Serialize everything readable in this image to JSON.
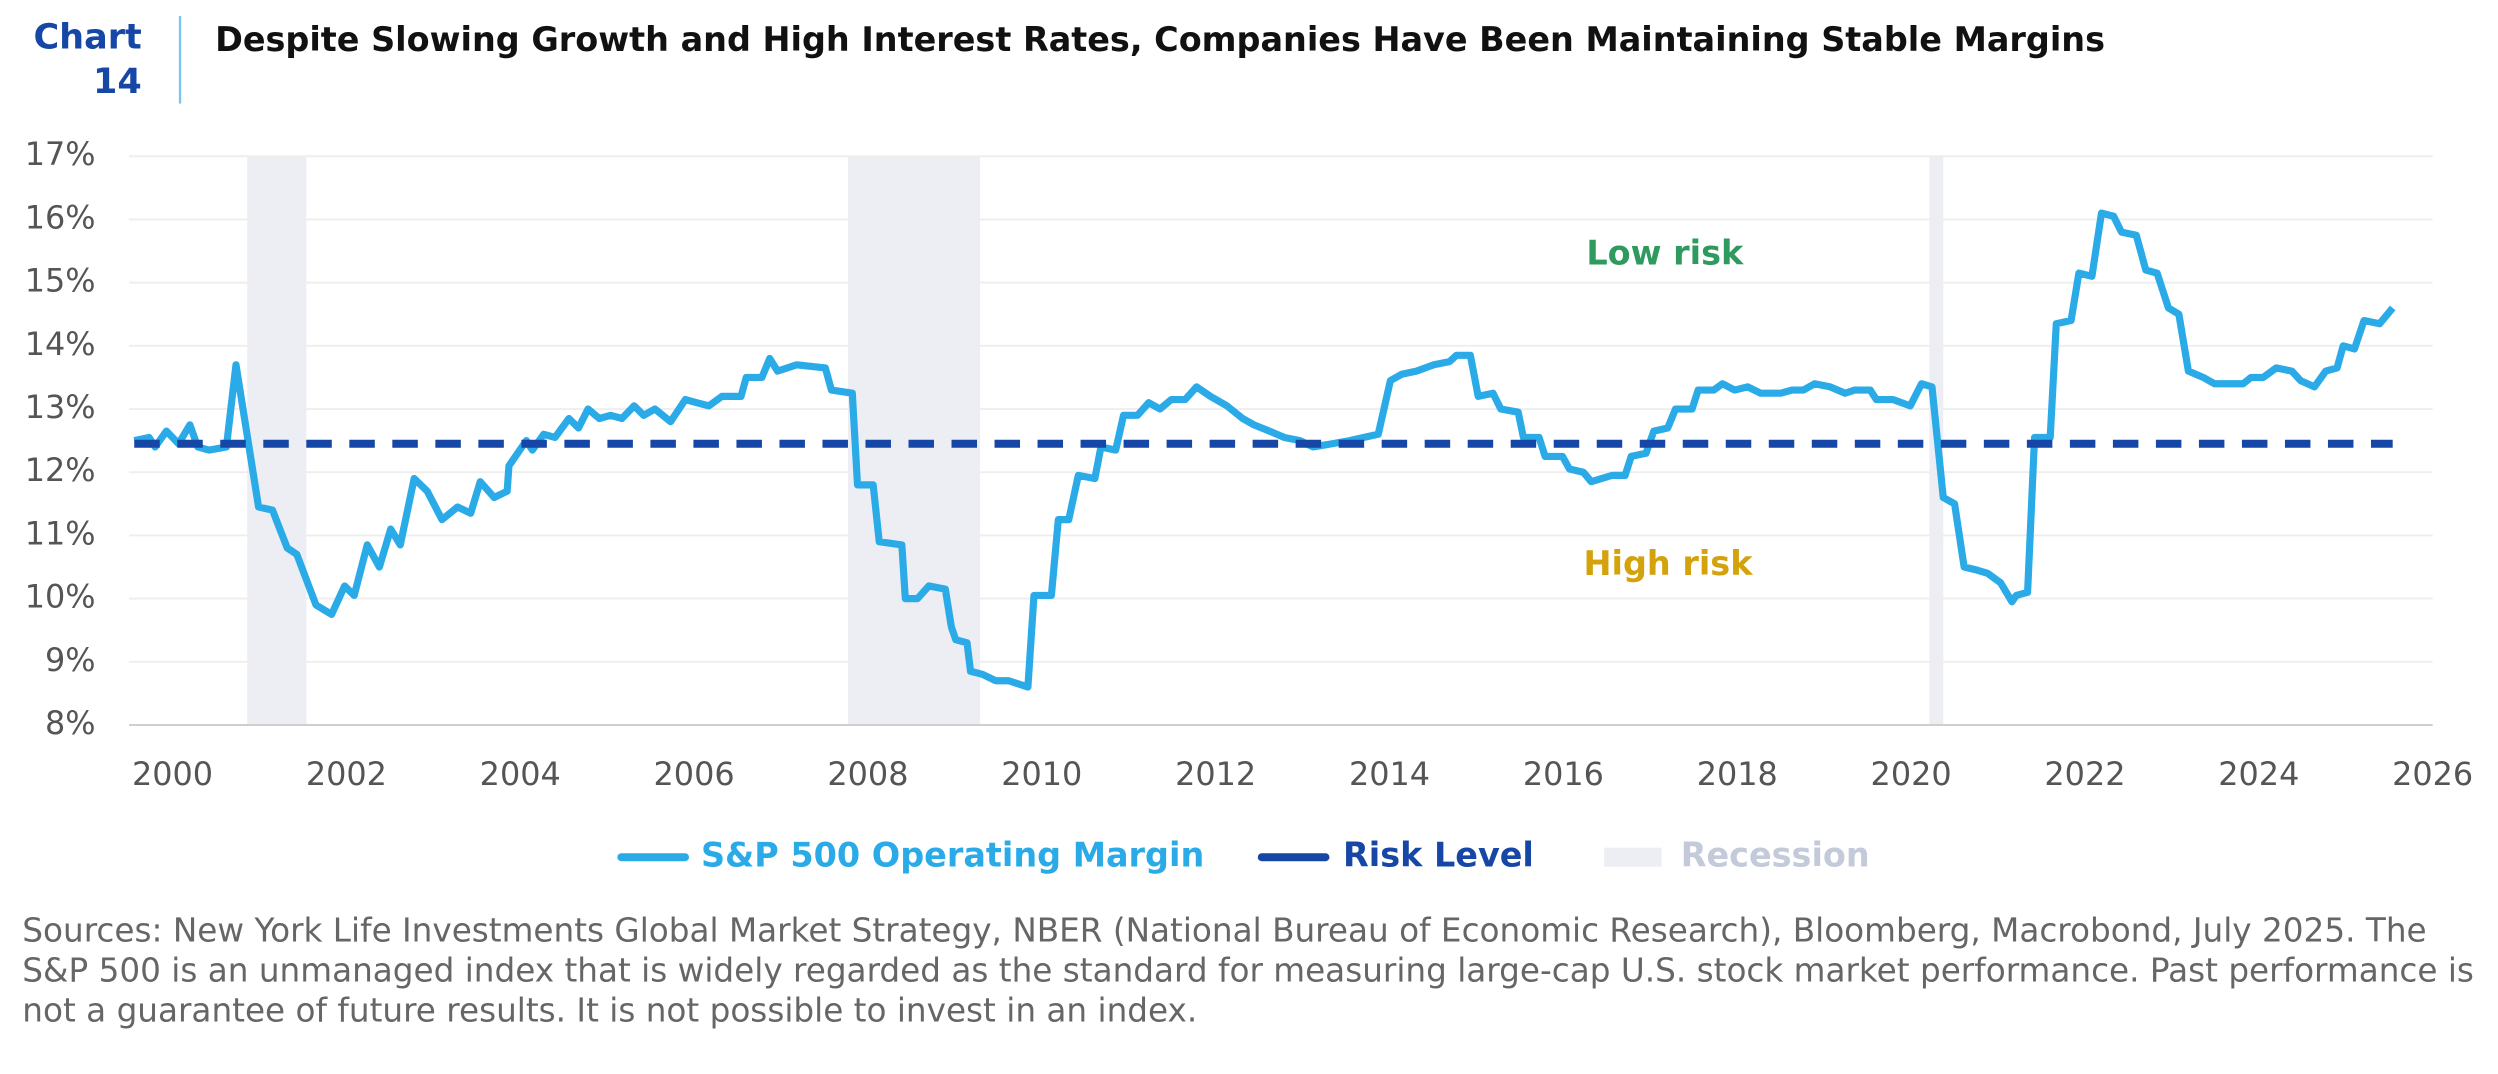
{
  "chart_data": {
    "type": "line",
    "chart_label": "Chart",
    "chart_number": "14",
    "title": "Despite Slowing Growth and High Interest Rates, Companies Have Been Maintaining Stable Margins",
    "annotations": [
      {
        "text": "Low risk",
        "color": "#2e9a5e"
      },
      {
        "text": "High risk",
        "color": "#d4a20a"
      }
    ],
    "xlim": [
      1999.5,
      2026
    ],
    "xticks": [
      2000,
      2002,
      2004,
      2006,
      2008,
      2010,
      2012,
      2014,
      2016,
      2018,
      2020,
      2022,
      2024,
      2026
    ],
    "ylim": [
      8,
      17
    ],
    "yticks": [
      {
        "value": 8,
        "label": "8%"
      },
      {
        "value": 9,
        "label": "9%"
      },
      {
        "value": 10,
        "label": "10%"
      },
      {
        "value": 11,
        "label": "11%"
      },
      {
        "value": 12,
        "label": "12%"
      },
      {
        "value": 13,
        "label": "13%"
      },
      {
        "value": 14,
        "label": "14%"
      },
      {
        "value": 15,
        "label": "15%"
      },
      {
        "value": 16,
        "label": "16%"
      },
      {
        "value": 17,
        "label": "17%"
      }
    ],
    "grid": true,
    "recession_name": "Recession",
    "recession_color": "#eceef4",
    "recessions": [
      [
        2000.86,
        2001.54
      ],
      [
        2007.77,
        2009.29
      ],
      [
        2020.21,
        2020.37
      ]
    ],
    "series": [
      {
        "name": "S&P 500 Operating Margin",
        "color": "#2aabe8",
        "x": [
          1999.56,
          1999.73,
          1999.8,
          1999.93,
          2000.07,
          2000.2,
          2000.29,
          2000.42,
          2000.62,
          2000.73,
          2000.99,
          2001.15,
          2001.32,
          2001.43,
          2001.65,
          2001.83,
          2001.98,
          2002.09,
          2002.24,
          2002.38,
          2002.51,
          2002.62,
          2002.78,
          2002.93,
          2003.1,
          2003.28,
          2003.43,
          2003.54,
          2003.7,
          2003.85,
          2003.87,
          2004.07,
          2004.14,
          2004.27,
          2004.4,
          2004.56,
          2004.67,
          2004.78,
          2004.91,
          2005.04,
          2005.17,
          2005.31,
          2005.42,
          2005.55,
          2005.73,
          2005.9,
          2006.03,
          2006.17,
          2006.32,
          2006.54,
          2006.6,
          2006.78,
          2006.87,
          2006.96,
          2007.18,
          2007.51,
          2007.58,
          2007.82,
          2007.88,
          2008.06,
          2008.13,
          2008.39,
          2008.43,
          2008.57,
          2008.7,
          2008.89,
          2008.96,
          2009.01,
          2009.14,
          2009.18,
          2009.32,
          2009.47,
          2009.62,
          2009.84,
          2009.91,
          2010.11,
          2010.19,
          2010.31,
          2010.42,
          2010.61,
          2010.68,
          2010.85,
          2010.94,
          2011.1,
          2011.23,
          2011.36,
          2011.49,
          2011.65,
          2011.78,
          2011.94,
          2012.13,
          2012.31,
          2012.44,
          2012.62,
          2012.79,
          2012.97,
          2013.12,
          2013.34,
          2013.54,
          2013.7,
          2013.87,
          2014.01,
          2014.14,
          2014.31,
          2014.51,
          2014.69,
          2014.77,
          2014.93,
          2015.02,
          2015.19,
          2015.28,
          2015.48,
          2015.54,
          2015.72,
          2015.79,
          2015.99,
          2016.07,
          2016.23,
          2016.32,
          2016.56,
          2016.71,
          2016.78,
          2016.95,
          2017.04,
          2017.2,
          2017.29,
          2017.48,
          2017.55,
          2017.73,
          2017.83,
          2017.97,
          2018.12,
          2018.27,
          2018.5,
          2018.63,
          2018.76,
          2018.89,
          2019.07,
          2019.24,
          2019.35,
          2019.53,
          2019.6,
          2019.79,
          2019.99,
          2020.12,
          2020.24,
          2020.37,
          2020.5,
          2020.61,
          2020.76,
          2020.88,
          2021.03,
          2021.16,
          2021.21,
          2021.34,
          2021.42,
          2021.6,
          2021.67,
          2021.84,
          2021.93,
          2022.08,
          2022.19,
          2022.33,
          2022.42,
          2022.59,
          2022.7,
          2022.83,
          2022.96,
          2023.08,
          2023.19,
          2023.36,
          2023.49,
          2023.61,
          2023.82,
          2023.91,
          2024.05,
          2024.2,
          2024.38,
          2024.48,
          2024.64,
          2024.77,
          2024.9,
          2024.97,
          2025.1,
          2025.21,
          2025.39,
          2025.54
        ],
        "values": [
          12.5,
          12.55,
          12.4,
          12.65,
          12.45,
          12.75,
          12.4,
          12.35,
          12.4,
          13.7,
          11.45,
          11.4,
          10.8,
          10.7,
          9.9,
          9.75,
          10.2,
          10.05,
          10.85,
          10.5,
          11.1,
          10.85,
          11.9,
          11.7,
          11.25,
          11.45,
          11.35,
          11.85,
          11.6,
          11.7,
          12.1,
          12.5,
          12.35,
          12.6,
          12.55,
          12.85,
          12.7,
          13.0,
          12.85,
          12.9,
          12.85,
          13.05,
          12.9,
          13.0,
          12.8,
          13.15,
          13.1,
          13.05,
          13.2,
          13.2,
          13.5,
          13.5,
          13.8,
          13.6,
          13.7,
          13.65,
          13.3,
          13.25,
          11.8,
          11.8,
          10.9,
          10.85,
          10.0,
          10.0,
          10.2,
          10.15,
          9.55,
          9.35,
          9.3,
          8.85,
          8.8,
          8.7,
          8.7,
          8.6,
          10.05,
          10.05,
          11.25,
          11.25,
          11.95,
          11.9,
          12.4,
          12.35,
          12.9,
          12.9,
          13.1,
          13.0,
          13.15,
          13.15,
          13.35,
          13.2,
          13.05,
          12.85,
          12.75,
          12.65,
          12.55,
          12.5,
          12.4,
          12.45,
          12.5,
          12.55,
          12.6,
          13.45,
          13.55,
          13.6,
          13.7,
          13.75,
          13.85,
          13.85,
          13.2,
          13.25,
          13.0,
          12.95,
          12.55,
          12.55,
          12.25,
          12.25,
          12.05,
          12.0,
          11.85,
          11.95,
          11.95,
          12.25,
          12.3,
          12.65,
          12.7,
          13.0,
          13.0,
          13.3,
          13.3,
          13.4,
          13.3,
          13.35,
          13.25,
          13.25,
          13.3,
          13.3,
          13.4,
          13.35,
          13.25,
          13.3,
          13.3,
          13.15,
          13.15,
          13.05,
          13.4,
          13.35,
          11.6,
          11.5,
          10.5,
          10.45,
          10.4,
          10.25,
          9.95,
          10.05,
          10.1,
          12.55,
          12.55,
          14.35,
          14.4,
          15.15,
          15.1,
          16.1,
          16.05,
          15.8,
          15.75,
          15.2,
          15.15,
          14.6,
          14.5,
          13.6,
          13.5,
          13.4,
          13.4,
          13.4,
          13.5,
          13.5,
          13.65,
          13.6,
          13.45,
          13.35,
          13.6,
          13.65,
          14.0,
          13.95,
          14.4,
          14.35,
          14.6
        ]
      },
      {
        "name": "Risk Level",
        "color": "#1747a6",
        "dashed": true,
        "x": [
          1999.56,
          2025.54
        ],
        "values": [
          12.45,
          12.45
        ]
      }
    ],
    "note": "Sources: New York Life Investments Global Market Strategy, NBER (National Bureau of Economic Research), Bloomberg, Macrobond, July 2025. The S&P 500 is an unmanaged index that is widely regarded as the standard for measuring large-cap U.S. stock market performance. Past performance is not a guarantee of future results. It is not possible to invest in an index."
  }
}
